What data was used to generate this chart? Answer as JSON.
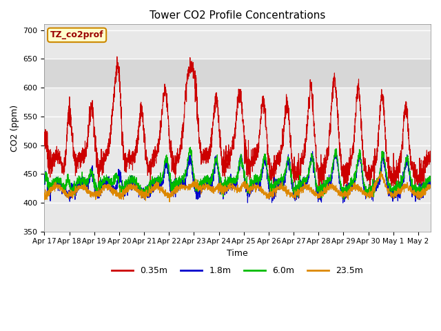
{
  "title": "Tower CO2 Profile Concentrations",
  "xlabel": "Time",
  "ylabel": "CO2 (ppm)",
  "ylim": [
    350,
    710
  ],
  "yticks": [
    350,
    400,
    450,
    500,
    550,
    600,
    650,
    700
  ],
  "xlim_days": [
    0,
    15.5
  ],
  "x_tick_labels": [
    "Apr 17",
    "Apr 18",
    "Apr 19",
    "Apr 20",
    "Apr 21",
    "Apr 22",
    "Apr 23",
    "Apr 24",
    "Apr 25",
    "Apr 26",
    "Apr 27",
    "Apr 28",
    "Apr 29",
    "Apr 30",
    "May 1",
    "May 2"
  ],
  "x_tick_positions": [
    0,
    1,
    2,
    3,
    4,
    5,
    6,
    7,
    8,
    9,
    10,
    11,
    12,
    13,
    14,
    15
  ],
  "shade_ymin": 600,
  "shade_ymax": 650,
  "colors": {
    "0.35m": "#cc0000",
    "1.8m": "#0000cc",
    "6.0m": "#00bb00",
    "23.5m": "#dd8800"
  },
  "legend_box_label": "TZ_co2prof",
  "plot_bg_color": "#e8e8e8"
}
